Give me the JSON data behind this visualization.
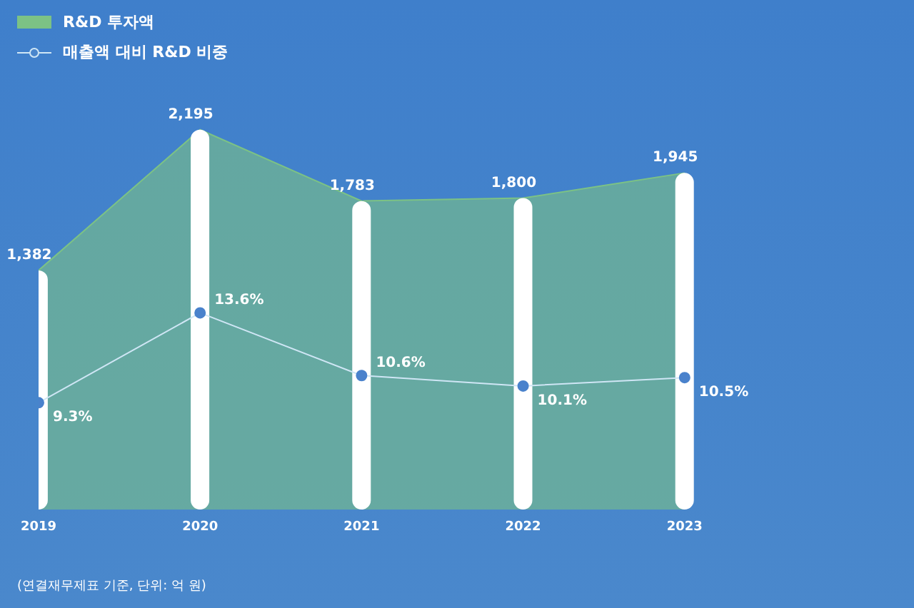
{
  "chart_data": {
    "type": "area",
    "categories": [
      "2019",
      "2020",
      "2021",
      "2022",
      "2023"
    ],
    "series": [
      {
        "name": "R&D 투자액",
        "color": "#7cc285",
        "values": [
          1382,
          2195,
          1783,
          1800,
          1945
        ]
      },
      {
        "type": "bar",
        "color": "#ffffff",
        "values": [
          1382,
          2195,
          1783,
          1800,
          1945
        ],
        "value_labels": [
          "1,382",
          "2,195",
          "1,783",
          "1,800",
          "1,945"
        ]
      },
      {
        "name": "매출액 대비 R&D 비중",
        "type": "line",
        "marker": "circle",
        "axis": "y2",
        "color": "#cfe6f5",
        "values": [
          9.3,
          13.6,
          10.6,
          10.1,
          10.5
        ],
        "value_labels": [
          "9.3%",
          "13.6%",
          "10.6%",
          "10.1%",
          "10.5%"
        ]
      }
    ],
    "tick_labels": "x",
    "legend": "top left",
    "annotations": [
      "(연결재무제표 기준, 단위: 억 원)"
    ]
  }
}
